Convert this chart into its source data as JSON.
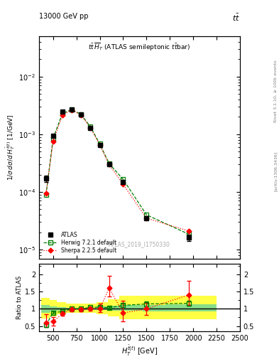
{
  "xlim": [
    350,
    2500
  ],
  "ylim_main": [
    7e-06,
    0.05
  ],
  "ylim_ratio": [
    0.35,
    2.3
  ],
  "atlas_x": [
    425,
    500,
    600,
    700,
    800,
    900,
    1000,
    1100,
    1250,
    1500,
    1950
  ],
  "atlas_y": [
    0.00017,
    0.00095,
    0.0025,
    0.0027,
    0.0022,
    0.0013,
    0.00065,
    0.0003,
    0.00015,
    3.5e-05,
    1.6e-05
  ],
  "atlas_yerr": [
    2e-05,
    5e-05,
    9e-05,
    9e-05,
    8e-05,
    5e-05,
    2.5e-05,
    1.3e-05,
    7e-06,
    2.5e-06,
    2e-06
  ],
  "herwig_x": [
    425,
    500,
    600,
    700,
    800,
    900,
    1000,
    1100,
    1250,
    1500,
    1950
  ],
  "herwig_y": [
    9e-05,
    0.00085,
    0.0023,
    0.0027,
    0.0022,
    0.00135,
    0.00068,
    0.00031,
    0.000165,
    4e-05,
    1.85e-05
  ],
  "sherpa_x": [
    425,
    500,
    600,
    700,
    800,
    900,
    1000,
    1100,
    1250,
    1500,
    1950
  ],
  "sherpa_y": [
    9.5e-05,
    0.00075,
    0.00215,
    0.00265,
    0.00215,
    0.0013,
    0.00065,
    0.0003,
    0.000135,
    3.5e-05,
    2.1e-05
  ],
  "herwig_ratio": [
    0.53,
    0.89,
    0.92,
    1.0,
    1.0,
    1.04,
    1.05,
    1.03,
    1.1,
    1.14,
    1.16
  ],
  "herwig_ratio_ehi": [
    0.05,
    0.03,
    0.03,
    0.03,
    0.03,
    0.03,
    0.03,
    0.04,
    0.06,
    0.07,
    0.07
  ],
  "herwig_ratio_elo": [
    0.05,
    0.03,
    0.03,
    0.03,
    0.03,
    0.03,
    0.03,
    0.04,
    0.06,
    0.07,
    0.07
  ],
  "sherpa_ratio": [
    0.6,
    0.63,
    0.86,
    0.98,
    0.98,
    1.0,
    1.0,
    1.6,
    0.88,
    1.0,
    1.4
  ],
  "sherpa_ratio_ehi": [
    0.25,
    0.12,
    0.06,
    0.05,
    0.05,
    0.05,
    0.15,
    0.35,
    0.35,
    0.18,
    0.4
  ],
  "sherpa_ratio_elo": [
    0.12,
    0.12,
    0.06,
    0.05,
    0.05,
    0.05,
    0.1,
    0.25,
    0.25,
    0.18,
    0.3
  ],
  "atlas_color": "#000000",
  "herwig_color": "#008000",
  "sherpa_color": "#ff0000",
  "band_x_edges": [
    375,
    462,
    537,
    637,
    737,
    862,
    962,
    1087,
    1212,
    1462,
    1712,
    2250
  ],
  "green_band_lo": [
    0.88,
    0.93,
    0.95,
    0.97,
    0.97,
    0.97,
    0.96,
    0.95,
    0.94,
    0.93,
    0.92
  ],
  "green_band_hi": [
    1.12,
    1.07,
    1.05,
    1.03,
    1.03,
    1.03,
    1.06,
    1.08,
    1.12,
    1.12,
    1.14
  ],
  "yellow_band_lo": [
    0.72,
    0.78,
    0.84,
    0.88,
    0.88,
    0.88,
    0.84,
    0.78,
    0.7,
    0.7,
    0.7
  ],
  "yellow_band_hi": [
    1.32,
    1.25,
    1.2,
    1.15,
    1.15,
    1.15,
    1.2,
    1.28,
    1.38,
    1.38,
    1.38
  ]
}
